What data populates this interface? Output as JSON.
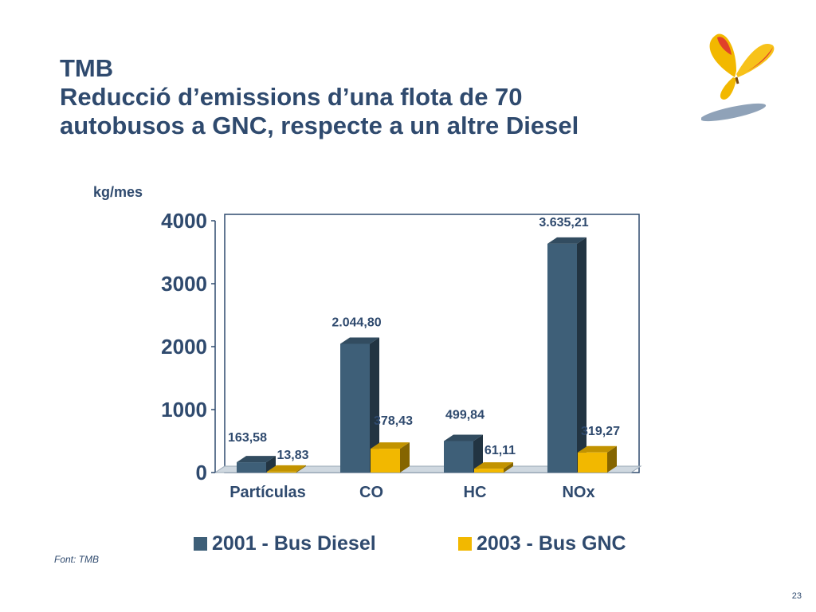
{
  "slide": {
    "title_line1": "TMB",
    "title_line2": "Reducció d’emissions d’una flota de 70",
    "title_line3": "autobusos a GNC, respecte a un altre Diesel",
    "source": "Font: TMB",
    "page_number": "23"
  },
  "colors": {
    "title": "#2f4a6e",
    "diesel": "#3e5f78",
    "gnc": "#f2b800",
    "floor": "#cfd8e0"
  },
  "chart_data": {
    "type": "bar",
    "title": "",
    "ylabel": "kg/mes",
    "xlabel": "",
    "categories": [
      "Partículas",
      "CO",
      "HC",
      "NOx"
    ],
    "series": [
      {
        "name": "2001 - Bus Diesel",
        "color": "#3e5f78",
        "values": [
          163.58,
          2044.8,
          499.84,
          3635.21
        ],
        "labels": [
          "163,58",
          "2.044,80",
          "499,84",
          "3.635,21"
        ]
      },
      {
        "name": "2003 - Bus GNC",
        "color": "#f2b800",
        "values": [
          13.83,
          378.43,
          61.11,
          319.27
        ],
        "labels": [
          "13,83",
          "378,43",
          "61,11",
          "319,27"
        ]
      }
    ],
    "ylim": [
      0,
      4000
    ],
    "yticks": [
      "0",
      "1000",
      "2000",
      "3000",
      "4000"
    ],
    "style": "3d",
    "grid": false,
    "legend_position": "bottom"
  }
}
